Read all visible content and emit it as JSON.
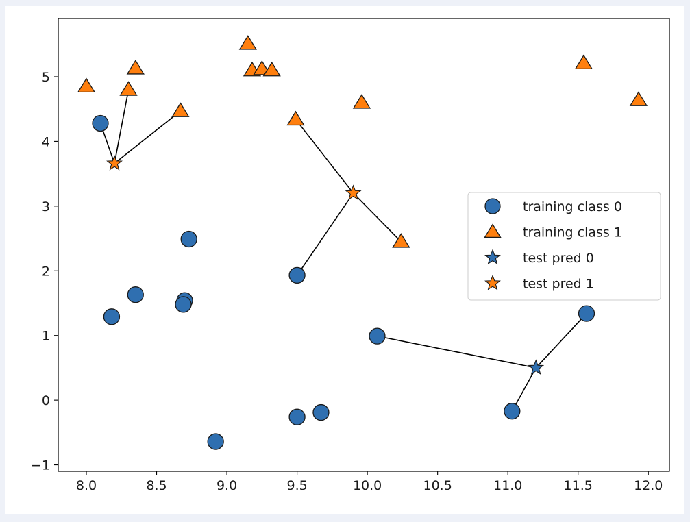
{
  "chart_data": {
    "type": "scatter",
    "title": "",
    "xlabel": "",
    "ylabel": "",
    "xlim": [
      7.8,
      12.15
    ],
    "ylim": [
      -1.1,
      5.9
    ],
    "xticks": [
      8.0,
      8.5,
      9.0,
      9.5,
      10.0,
      10.5,
      11.0,
      11.5,
      12.0
    ],
    "xtick_labels": [
      "8.0",
      "8.5",
      "9.0",
      "9.5",
      "10.0",
      "10.5",
      "11.0",
      "11.5",
      "12.0"
    ],
    "yticks": [
      -1,
      0,
      1,
      2,
      3,
      4,
      5
    ],
    "ytick_labels": [
      "−1",
      "0",
      "1",
      "2",
      "3",
      "4",
      "5"
    ],
    "grid": false,
    "legend": {
      "position": "center-right",
      "entries": [
        "training class 0",
        "training class 1",
        "test pred 0",
        "test pred 1"
      ]
    },
    "series": [
      {
        "name": "training class 0",
        "marker": "circle",
        "points": [
          [
            8.1,
            4.28
          ],
          [
            8.73,
            2.49
          ],
          [
            9.5,
            1.93
          ],
          [
            8.35,
            1.63
          ],
          [
            8.18,
            1.29
          ],
          [
            8.7,
            1.54
          ],
          [
            8.69,
            1.48
          ],
          [
            10.07,
            0.99
          ],
          [
            11.56,
            1.34
          ],
          [
            11.03,
            -0.17
          ],
          [
            9.5,
            -0.26
          ],
          [
            9.67,
            -0.19
          ],
          [
            8.92,
            -0.64
          ]
        ]
      },
      {
        "name": "training class 1",
        "marker": "triangle",
        "points": [
          [
            8.0,
            4.85
          ],
          [
            8.3,
            4.8
          ],
          [
            8.35,
            5.13
          ],
          [
            8.67,
            4.47
          ],
          [
            9.15,
            5.51
          ],
          [
            9.18,
            5.1
          ],
          [
            9.25,
            5.12
          ],
          [
            9.32,
            5.1
          ],
          [
            9.49,
            4.34
          ],
          [
            9.96,
            4.6
          ],
          [
            10.24,
            2.45
          ],
          [
            11.54,
            5.21
          ],
          [
            11.93,
            4.64
          ]
        ]
      },
      {
        "name": "test pred 0",
        "marker": "star",
        "points": [
          [
            11.2,
            0.5
          ]
        ]
      },
      {
        "name": "test pred 1",
        "marker": "star",
        "points": [
          [
            8.2,
            3.66
          ],
          [
            9.9,
            3.2
          ]
        ]
      }
    ],
    "neighbor_lines": [
      {
        "from": [
          8.2,
          3.66
        ],
        "to": [
          8.1,
          4.28
        ]
      },
      {
        "from": [
          8.2,
          3.66
        ],
        "to": [
          8.3,
          4.8
        ]
      },
      {
        "from": [
          8.2,
          3.66
        ],
        "to": [
          8.67,
          4.47
        ]
      },
      {
        "from": [
          9.9,
          3.2
        ],
        "to": [
          9.49,
          4.34
        ]
      },
      {
        "from": [
          9.9,
          3.2
        ],
        "to": [
          10.24,
          2.45
        ]
      },
      {
        "from": [
          9.9,
          3.2
        ],
        "to": [
          9.5,
          1.93
        ]
      },
      {
        "from": [
          11.2,
          0.5
        ],
        "to": [
          10.07,
          0.99
        ]
      },
      {
        "from": [
          11.2,
          0.5
        ],
        "to": [
          11.56,
          1.34
        ]
      },
      {
        "from": [
          11.2,
          0.5
        ],
        "to": [
          11.03,
          -0.17
        ]
      }
    ],
    "colors": {
      "class0": "#2f6fb0",
      "class1": "#ff7f0e",
      "edge": "#1a1a1a",
      "line": "#000000"
    }
  }
}
